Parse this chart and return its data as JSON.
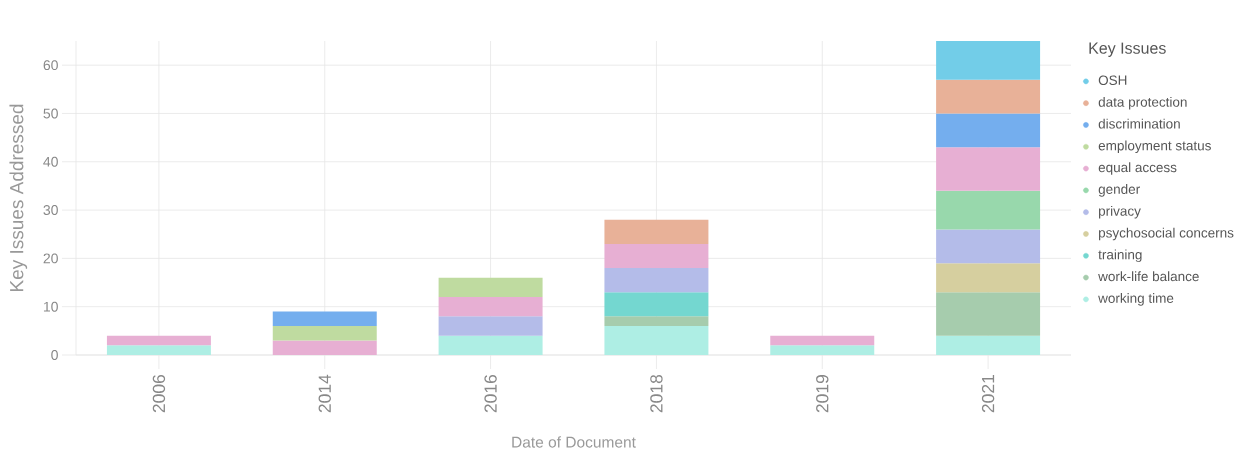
{
  "chart_data": {
    "type": "bar",
    "stacked": true,
    "xlabel": "Date of Document",
    "ylabel": "Key Issues Addressed",
    "legend_title": "Key Issues",
    "categories": [
      "2006",
      "2014",
      "2016",
      "2018",
      "2019",
      "2021"
    ],
    "series": [
      {
        "name": "working time",
        "color": "#aeeee4",
        "values": [
          2,
          null,
          4,
          6,
          2,
          4
        ]
      },
      {
        "name": "work-life balance",
        "color": "#a6ccad",
        "values": [
          null,
          null,
          null,
          2,
          null,
          9
        ]
      },
      {
        "name": "training",
        "color": "#74d7d0",
        "values": [
          null,
          null,
          null,
          5,
          null,
          null
        ]
      },
      {
        "name": "psychosocial concerns",
        "color": "#d6cf9f",
        "values": [
          null,
          null,
          null,
          null,
          null,
          6
        ]
      },
      {
        "name": "privacy",
        "color": "#b4bce9",
        "values": [
          null,
          null,
          4,
          5,
          null,
          7
        ]
      },
      {
        "name": "gender",
        "color": "#98d8ac",
        "values": [
          null,
          null,
          null,
          null,
          null,
          8
        ]
      },
      {
        "name": "equal access",
        "color": "#e7afd3",
        "values": [
          2,
          3,
          4,
          5,
          2,
          9
        ]
      },
      {
        "name": "employment status",
        "color": "#bfdba0",
        "values": [
          null,
          3,
          4,
          null,
          null,
          null
        ]
      },
      {
        "name": "discrimination",
        "color": "#74aeee",
        "values": [
          null,
          3,
          null,
          null,
          null,
          7
        ]
      },
      {
        "name": "data protection",
        "color": "#e8b198",
        "values": [
          null,
          null,
          null,
          5,
          null,
          7
        ]
      },
      {
        "name": "OSH",
        "color": "#72cde8",
        "values": [
          null,
          null,
          null,
          null,
          null,
          8
        ]
      }
    ],
    "ylim": [
      0,
      65
    ],
    "yticks": [
      0,
      10,
      20,
      30,
      40,
      50,
      60
    ],
    "grid": true,
    "legend": "right"
  }
}
